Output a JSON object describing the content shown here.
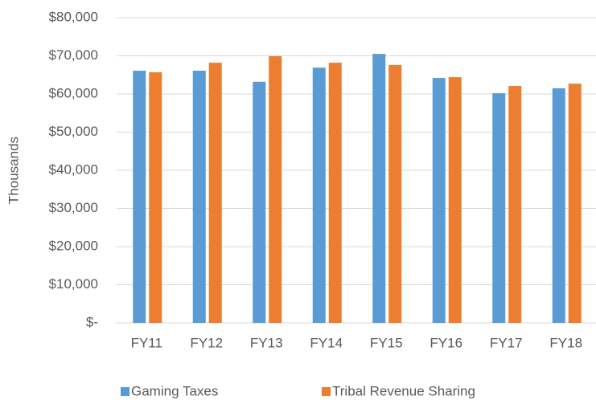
{
  "chart_data": {
    "type": "bar",
    "y_label": "Thousands",
    "categories": [
      "FY11",
      "FY12",
      "FY13",
      "FY14",
      "FY15",
      "FY16",
      "FY17",
      "FY18"
    ],
    "series": [
      {
        "name": "Gaming Taxes",
        "color": "#5b9bd5",
        "values": [
          66100,
          66100,
          63200,
          66900,
          70500,
          64200,
          60200,
          61500
        ]
      },
      {
        "name": "Tribal Revenue Sharing",
        "color": "#ed7d31",
        "values": [
          65700,
          68200,
          69900,
          68200,
          67600,
          64400,
          62100,
          62700
        ]
      }
    ],
    "ylim": [
      0,
      80000
    ],
    "yticks": [
      {
        "value": 0,
        "label": "$-"
      },
      {
        "value": 10000,
        "label": "$10,000"
      },
      {
        "value": 20000,
        "label": "$20,000"
      },
      {
        "value": 30000,
        "label": "$30,000"
      },
      {
        "value": 40000,
        "label": "$40,000"
      },
      {
        "value": 50000,
        "label": "$50,000"
      },
      {
        "value": 60000,
        "label": "$60,000"
      },
      {
        "value": 70000,
        "label": "$70,000"
      },
      {
        "value": 80000,
        "label": "$80,000"
      }
    ],
    "grid": true,
    "legend": "bottom"
  }
}
